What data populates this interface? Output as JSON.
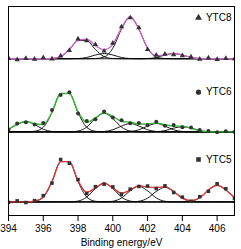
{
  "chart_data": {
    "type": "line",
    "x_label": "Binding energy/eV",
    "x": [
      394,
      394.5,
      395,
      395.5,
      396,
      396.5,
      397,
      397.5,
      398,
      398.5,
      399,
      399.5,
      400,
      400.5,
      401,
      401.5,
      402,
      402.5,
      403,
      403.5,
      404,
      404.5,
      405,
      405.5,
      406,
      406.5,
      407
    ],
    "xlim": [
      394,
      407
    ],
    "xticks": [
      394,
      396,
      398,
      400,
      402,
      404,
      406
    ],
    "ylim": [
      0,
      100
    ],
    "yticks": [],
    "tick_labels": "x",
    "series": [
      {
        "type": "line",
        "color": "#000000",
        "values": [
          75,
          75,
          75,
          75,
          75,
          75.1,
          76,
          79.4,
          83.7,
          83.7,
          79.4,
          76,
          75.1,
          75,
          75,
          75,
          75,
          75,
          75,
          75,
          75,
          75,
          75,
          75,
          75,
          75,
          75
        ]
      },
      {
        "type": "line",
        "color": "#000000",
        "values": [
          75,
          75,
          75,
          75,
          75,
          75,
          75,
          75,
          75.1,
          75.6,
          76.8,
          77.5,
          76.8,
          75.6,
          75.1,
          75,
          75,
          75,
          75,
          75,
          75,
          75,
          75,
          75,
          75,
          75,
          75
        ]
      },
      {
        "type": "line",
        "color": "#000000",
        "values": [
          75,
          75,
          75,
          75,
          75,
          75,
          75,
          75,
          75,
          75,
          75.1,
          75.8,
          80,
          89.2,
          95,
          89.2,
          80,
          75.8,
          75.1,
          75,
          75,
          75,
          75,
          75,
          75,
          75,
          75
        ]
      },
      {
        "type": "line",
        "color": "#000000",
        "values": [
          75,
          75,
          75,
          75,
          75,
          75,
          75,
          75,
          75,
          75,
          75,
          75,
          75,
          75,
          75,
          75,
          75.1,
          75.6,
          76.8,
          77.5,
          76.8,
          75.6,
          75.1,
          75,
          75,
          75,
          75
        ]
      },
      {
        "type": "line",
        "color": "#cc66cc",
        "values": [
          75,
          75,
          75,
          75,
          75,
          75.1,
          76,
          79.4,
          83.8,
          84.3,
          81.3,
          79.3,
          81.9,
          89.8,
          95.1,
          89.2,
          80.1,
          76.4,
          76.9,
          77.5,
          76.8,
          75.6,
          75.1,
          75,
          75,
          75,
          75
        ]
      },
      {
        "name": "YTC8",
        "type": "scatter",
        "marker": "triangle",
        "color": "#333333",
        "values": [
          75.3,
          74.6,
          75.2,
          74.8,
          75.5,
          74.9,
          76.4,
          79.0,
          84.5,
          83.6,
          81.8,
          78.7,
          82.5,
          90.3,
          94.6,
          89.8,
          79.4,
          76.8,
          77.2,
          77.0,
          76.5,
          75.9,
          74.8,
          75.4,
          74.7,
          75.2,
          75.0
        ]
      },
      {
        "type": "line",
        "color": "#000000",
        "values": [
          41.25,
          43.55,
          45,
          43.55,
          41.25,
          40.2,
          40,
          40,
          40,
          40,
          40,
          40,
          40,
          40,
          40,
          40,
          40,
          40,
          40,
          40,
          40,
          40,
          40,
          40,
          40,
          40,
          40
        ]
      },
      {
        "type": "line",
        "color": "#000000",
        "values": [
          40,
          40,
          40,
          40.3,
          42.2,
          49.2,
          58.4,
          58.4,
          49.2,
          42.2,
          40.3,
          40,
          40,
          40,
          40,
          40,
          40,
          40,
          40,
          40,
          40,
          40,
          40,
          40,
          40,
          40,
          40
        ]
      },
      {
        "type": "line",
        "color": "#000000",
        "values": [
          40,
          40,
          40,
          40,
          40,
          40,
          40,
          40,
          40.4,
          42.3,
          46.4,
          49,
          46.4,
          42.3,
          40.4,
          40,
          40,
          40,
          40,
          40,
          40,
          40,
          40,
          40,
          40,
          40,
          40
        ]
      },
      {
        "type": "line",
        "color": "#000000",
        "values": [
          40,
          40,
          40,
          40,
          40,
          40,
          40,
          40,
          40,
          40,
          40,
          40.2,
          41,
          42.8,
          44,
          42.8,
          41,
          40.2,
          40,
          40,
          40,
          40,
          40,
          40,
          40,
          40,
          40
        ]
      },
      {
        "type": "line",
        "color": "#000000",
        "values": [
          40,
          40,
          40,
          40,
          40,
          40,
          40,
          40,
          40,
          40,
          40,
          40,
          40,
          40,
          40.2,
          41,
          42.8,
          44,
          42.8,
          41,
          40.2,
          40,
          40,
          40,
          40,
          40,
          40
        ]
      },
      {
        "type": "line",
        "color": "#000000",
        "values": [
          40,
          40,
          40,
          40,
          40,
          40,
          40,
          40,
          40,
          40,
          40,
          40,
          40,
          40,
          40,
          40,
          40,
          40.1,
          40.6,
          41.8,
          42.5,
          41.8,
          40.6,
          40.1,
          40,
          40,
          40
        ]
      },
      {
        "type": "line",
        "color": "#33bb33",
        "values": [
          41.3,
          43.6,
          45,
          43.9,
          43.5,
          49.4,
          58.4,
          58.4,
          49.6,
          44.5,
          46.7,
          49.2,
          47.4,
          45.1,
          44.6,
          43.8,
          43.8,
          44.3,
          43.4,
          42.8,
          42.7,
          41.8,
          40.6,
          40.1,
          40,
          40,
          40
        ]
      },
      {
        "name": "YTC6",
        "type": "scatter",
        "marker": "circle",
        "color": "#333333",
        "values": [
          41.0,
          44.0,
          44.6,
          43.5,
          44.2,
          50.5,
          57.6,
          59.0,
          48.8,
          45.2,
          46.0,
          49.8,
          46.9,
          45.6,
          44.1,
          44.3,
          43.2,
          44.8,
          43.0,
          43.3,
          42.2,
          42.1,
          40.9,
          40.4,
          39.8,
          40.3,
          40.0
        ]
      },
      {
        "type": "line",
        "color": "#000000",
        "values": [
          6.5,
          6.5,
          6.5,
          6.8,
          8.8,
          16.2,
          25.8,
          25.8,
          16.2,
          8.8,
          6.8,
          6.5,
          6.5,
          6.5,
          6.5,
          6.5,
          6.5,
          6.5,
          6.5,
          6.5,
          6.5,
          6.5,
          6.5,
          6.5,
          6.5,
          6.5,
          6.5
        ]
      },
      {
        "type": "line",
        "color": "#000000",
        "values": [
          6.5,
          6.5,
          6.5,
          6.5,
          6.5,
          6.5,
          6.5,
          6.5,
          6.9,
          8.8,
          12.9,
          15.5,
          12.9,
          8.8,
          6.9,
          6.5,
          6.5,
          6.5,
          6.5,
          6.5,
          6.5,
          6.5,
          6.5,
          6.5,
          6.5,
          6.5,
          6.5
        ]
      },
      {
        "type": "line",
        "color": "#000000",
        "values": [
          6.5,
          6.5,
          6.5,
          6.5,
          6.5,
          6.5,
          6.5,
          6.5,
          6.5,
          6.5,
          6.5,
          6.5,
          6.8,
          8.4,
          11.8,
          14.0,
          11.8,
          8.4,
          6.8,
          6.5,
          6.5,
          6.5,
          6.5,
          6.5,
          6.5,
          6.5,
          6.5
        ]
      },
      {
        "type": "line",
        "color": "#000000",
        "values": [
          6.5,
          6.5,
          6.5,
          6.5,
          6.5,
          6.5,
          6.5,
          6.5,
          6.5,
          6.5,
          6.5,
          6.5,
          6.5,
          6.5,
          6.5,
          6.8,
          8.3,
          11.5,
          13.5,
          11.5,
          8.3,
          6.8,
          6.5,
          6.5,
          6.5,
          6.5,
          6.5
        ]
      },
      {
        "type": "line",
        "color": "#000000",
        "values": [
          6.5,
          6.5,
          6.5,
          6.5,
          6.5,
          6.5,
          6.5,
          6.5,
          6.5,
          6.5,
          6.5,
          6.5,
          6.5,
          6.5,
          6.5,
          6.5,
          6.5,
          6.5,
          6.5,
          6.5,
          6.5,
          6.8,
          8.5,
          12.2,
          14.5,
          12.2,
          8.5
        ]
      },
      {
        "type": "line",
        "color": "#dd3333",
        "values": [
          6.5,
          6.5,
          6.5,
          6.8,
          8.8,
          16.2,
          25.8,
          25.8,
          16.6,
          11.1,
          13.2,
          15.5,
          13.2,
          10.7,
          12.2,
          14.3,
          13.6,
          13.4,
          13.8,
          11.5,
          8.3,
          7.1,
          8.5,
          12.2,
          14.5,
          12.2,
          8.5
        ]
      },
      {
        "name": "YTC5",
        "type": "scatter",
        "marker": "square",
        "color": "#333333",
        "values": [
          6.3,
          7.0,
          6.2,
          7.1,
          9.5,
          15.5,
          26.8,
          25.0,
          17.2,
          10.5,
          13.8,
          15.0,
          13.7,
          10.2,
          12.6,
          13.9,
          14.1,
          12.9,
          14.2,
          11.0,
          8.8,
          6.8,
          9.0,
          11.6,
          15.2,
          12.8,
          8.1
        ]
      }
    ]
  }
}
